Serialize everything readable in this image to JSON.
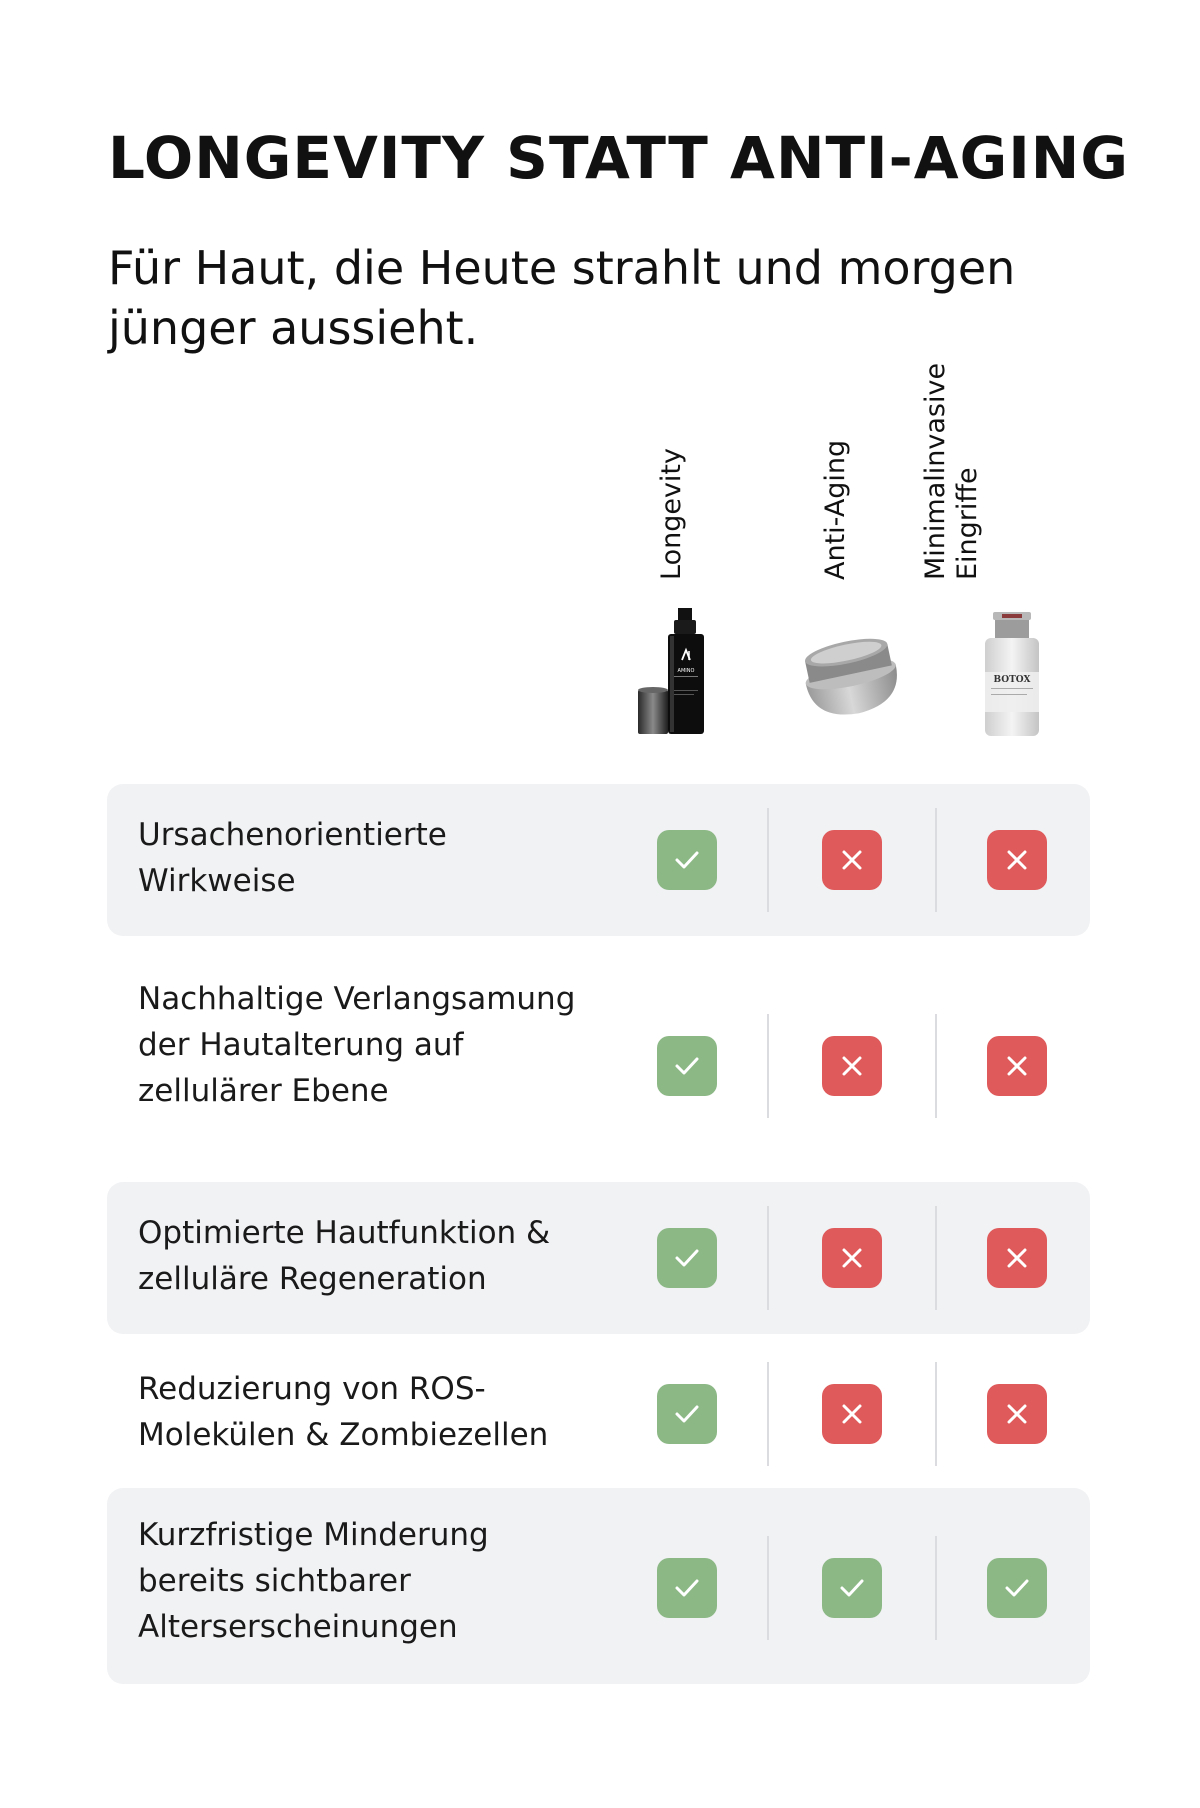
{
  "title": "LONGEVITY STATT ANTI-AGING",
  "subtitle": "Für Haut, die Heute strahlt und morgen jünger aussieht.",
  "columns": [
    {
      "label_lines": [
        "Longevity"
      ],
      "product_icon": "serum-pump-bottle-icon",
      "product_text": "AMINO"
    },
    {
      "label_lines": [
        "Anti-Aging"
      ],
      "product_icon": "cream-jar-icon",
      "product_text": ""
    },
    {
      "label_lines": [
        "Minimalinvasive",
        "Eingriffe"
      ],
      "product_icon": "botox-vial-icon",
      "product_text": "BOTOX"
    }
  ],
  "rows": [
    {
      "label": "Ursachenorientierte Wirkweise",
      "values": [
        true,
        false,
        false
      ]
    },
    {
      "label": "Nachhaltige Verlangsamung der Hautalterung auf zellulärer Ebene",
      "values": [
        true,
        false,
        false
      ]
    },
    {
      "label": "Optimierte Hautfunktion & zelluläre Regeneration",
      "values": [
        true,
        false,
        false
      ]
    },
    {
      "label": "Reduzierung von ROS-Molekülen & Zombiezellen",
      "values": [
        true,
        false,
        false
      ]
    },
    {
      "label": "Kurzfristige Minderung bereits sichtbarer Alterserscheinungen",
      "values": [
        true,
        true,
        true
      ]
    }
  ],
  "colors": {
    "yes": "#8cb886",
    "no": "#df5a5a",
    "row_shade": "#f1f2f4"
  }
}
